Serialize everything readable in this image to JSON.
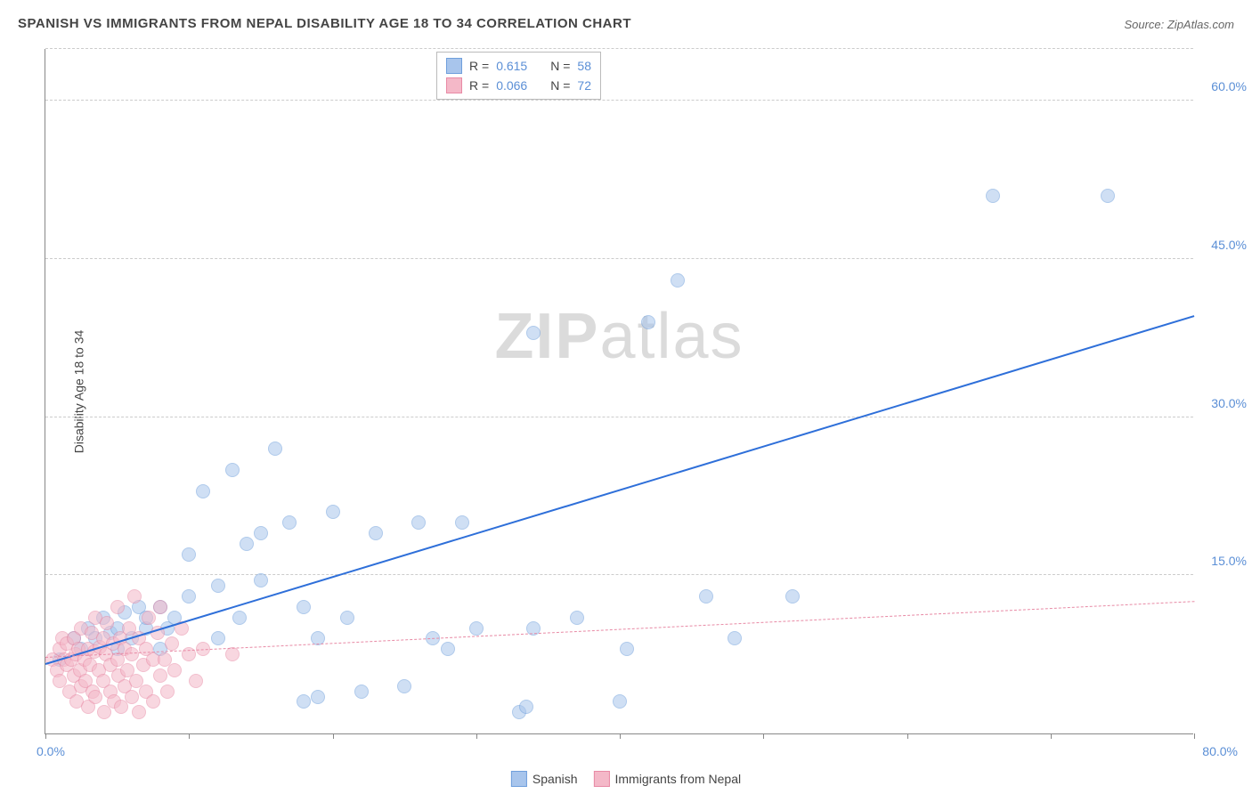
{
  "title": "SPANISH VS IMMIGRANTS FROM NEPAL DISABILITY AGE 18 TO 34 CORRELATION CHART",
  "source": "Source: ZipAtlas.com",
  "watermark": {
    "bold": "ZIP",
    "light": "atlas"
  },
  "chart": {
    "type": "scatter",
    "background_color": "#ffffff",
    "grid_color": "#cccccc",
    "ylabel": "Disability Age 18 to 34",
    "label_fontsize": 14,
    "xlim": [
      0,
      80
    ],
    "ylim": [
      0,
      65
    ],
    "x_axis_min_label": "0.0%",
    "x_axis_max_label": "80.0%",
    "x_ticks": [
      0,
      10,
      20,
      30,
      40,
      50,
      60,
      70,
      80
    ],
    "y_ticks": [
      {
        "v": 15,
        "label": "15.0%"
      },
      {
        "v": 30,
        "label": "30.0%"
      },
      {
        "v": 45,
        "label": "45.0%"
      },
      {
        "v": 60,
        "label": "60.0%"
      }
    ],
    "marker_radius": 8,
    "marker_opacity": 0.55,
    "series": [
      {
        "name": "Spanish",
        "color_fill": "#a8c5ec",
        "color_stroke": "#6f9fdc",
        "trend": {
          "x1": 0,
          "y1": 6.5,
          "x2": 80,
          "y2": 39.5,
          "color": "#2e6fd9",
          "width": 2.5,
          "dashed": false
        },
        "r_label": "R =",
        "r_value": "0.615",
        "n_label": "N =",
        "n_value": "58",
        "points": [
          [
            1,
            7
          ],
          [
            2,
            9
          ],
          [
            2.5,
            8
          ],
          [
            3,
            10
          ],
          [
            3.5,
            9
          ],
          [
            4,
            11
          ],
          [
            4.5,
            9.5
          ],
          [
            5,
            10
          ],
          [
            5,
            8
          ],
          [
            5.5,
            11.5
          ],
          [
            6,
            9
          ],
          [
            6.5,
            12
          ],
          [
            7,
            10
          ],
          [
            7,
            11
          ],
          [
            8,
            12
          ],
          [
            8,
            8
          ],
          [
            8.5,
            10
          ],
          [
            9,
            11
          ],
          [
            10,
            13
          ],
          [
            10,
            17
          ],
          [
            11,
            23
          ],
          [
            12,
            9
          ],
          [
            12,
            14
          ],
          [
            13,
            25
          ],
          [
            13.5,
            11
          ],
          [
            14,
            18
          ],
          [
            15,
            19
          ],
          [
            15,
            14.5
          ],
          [
            16,
            27
          ],
          [
            17,
            20
          ],
          [
            18,
            12
          ],
          [
            18,
            3
          ],
          [
            19,
            3.5
          ],
          [
            19,
            9
          ],
          [
            20,
            21
          ],
          [
            21,
            11
          ],
          [
            22,
            4
          ],
          [
            23,
            19
          ],
          [
            25,
            4.5
          ],
          [
            26,
            20
          ],
          [
            27,
            9
          ],
          [
            28,
            8
          ],
          [
            29,
            20
          ],
          [
            30,
            10
          ],
          [
            33,
            2
          ],
          [
            33.5,
            2.5
          ],
          [
            34,
            38
          ],
          [
            34,
            10
          ],
          [
            37,
            11
          ],
          [
            40,
            3
          ],
          [
            40.5,
            8
          ],
          [
            42,
            39
          ],
          [
            44,
            43
          ],
          [
            46,
            13
          ],
          [
            48,
            9
          ],
          [
            52,
            13
          ],
          [
            66,
            51
          ],
          [
            74,
            51
          ]
        ]
      },
      {
        "name": "Immigrants from Nepal",
        "color_fill": "#f4b8c8",
        "color_stroke": "#e88aa5",
        "trend": {
          "x1": 0,
          "y1": 7.2,
          "x2": 80,
          "y2": 12.5,
          "color": "#e88aa5",
          "width": 1.5,
          "dashed": true
        },
        "r_label": "R =",
        "r_value": "0.066",
        "n_label": "N =",
        "n_value": "72",
        "points": [
          [
            0.5,
            7
          ],
          [
            0.8,
            6
          ],
          [
            1,
            8
          ],
          [
            1,
            5
          ],
          [
            1.2,
            9
          ],
          [
            1.3,
            7
          ],
          [
            1.5,
            6.5
          ],
          [
            1.5,
            8.5
          ],
          [
            1.7,
            4
          ],
          [
            1.8,
            7
          ],
          [
            2,
            9
          ],
          [
            2,
            5.5
          ],
          [
            2.1,
            7.5
          ],
          [
            2.2,
            3
          ],
          [
            2.3,
            8
          ],
          [
            2.4,
            6
          ],
          [
            2.5,
            10
          ],
          [
            2.5,
            4.5
          ],
          [
            2.7,
            7
          ],
          [
            2.8,
            5
          ],
          [
            3,
            8
          ],
          [
            3,
            2.5
          ],
          [
            3.1,
            6.5
          ],
          [
            3.2,
            9.5
          ],
          [
            3.3,
            4
          ],
          [
            3.4,
            7.8
          ],
          [
            3.5,
            11
          ],
          [
            3.5,
            3.5
          ],
          [
            3.7,
            6
          ],
          [
            3.8,
            8.2
          ],
          [
            4,
            5
          ],
          [
            4,
            9
          ],
          [
            4.1,
            2
          ],
          [
            4.2,
            7.5
          ],
          [
            4.3,
            10.5
          ],
          [
            4.5,
            4
          ],
          [
            4.5,
            6.5
          ],
          [
            4.7,
            8.5
          ],
          [
            4.8,
            3
          ],
          [
            5,
            7
          ],
          [
            5,
            12
          ],
          [
            5.1,
            5.5
          ],
          [
            5.2,
            9
          ],
          [
            5.3,
            2.5
          ],
          [
            5.5,
            8
          ],
          [
            5.5,
            4.5
          ],
          [
            5.7,
            6
          ],
          [
            5.8,
            10
          ],
          [
            6,
            3.5
          ],
          [
            6,
            7.5
          ],
          [
            6.2,
            13
          ],
          [
            6.3,
            5
          ],
          [
            6.5,
            9
          ],
          [
            6.5,
            2
          ],
          [
            6.8,
            6.5
          ],
          [
            7,
            8
          ],
          [
            7,
            4
          ],
          [
            7.2,
            11
          ],
          [
            7.5,
            7
          ],
          [
            7.5,
            3
          ],
          [
            7.8,
            9.5
          ],
          [
            8,
            5.5
          ],
          [
            8,
            12
          ],
          [
            8.3,
            7
          ],
          [
            8.5,
            4
          ],
          [
            8.8,
            8.5
          ],
          [
            9,
            6
          ],
          [
            9.5,
            10
          ],
          [
            10,
            7.5
          ],
          [
            10.5,
            5
          ],
          [
            11,
            8
          ],
          [
            13,
            7.5
          ]
        ]
      }
    ]
  },
  "legend_bottom": [
    {
      "label": "Spanish",
      "fill": "#a8c5ec",
      "stroke": "#6f9fdc"
    },
    {
      "label": "Immigrants from Nepal",
      "fill": "#f4b8c8",
      "stroke": "#e88aa5"
    }
  ]
}
